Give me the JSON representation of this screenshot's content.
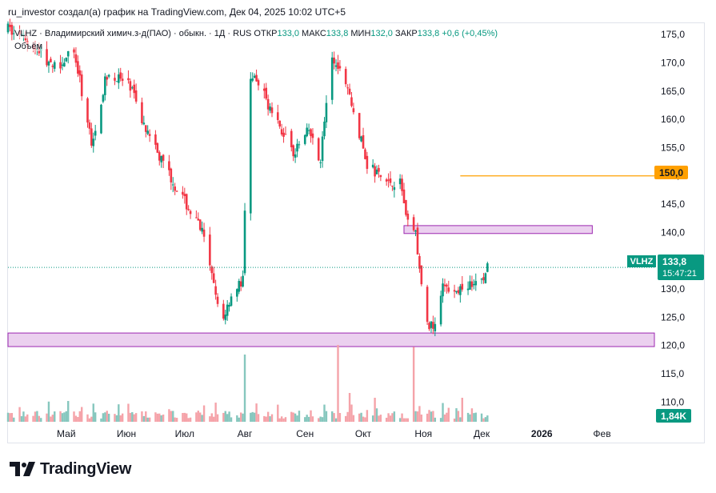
{
  "caption": "ru_investor создал(а) график на TradingView.com, Дек 04, 2025 10:02 UTC+5",
  "legend": {
    "symbol": "VLHZ · Владимирский химич.з-д(ПАО) · обыкн. · 1Д · RUS",
    "open_label": "ОТКР",
    "open": "133,0",
    "high_label": "МАКС",
    "high": "133,8",
    "low_label": "МИН",
    "low": "132,0",
    "close_label": "ЗАКР",
    "close": "133,8",
    "change": "+0,6 (+0,45%)",
    "volume_label": "Объём"
  },
  "price_tag": {
    "ticker": "VLHZ",
    "price": "133,8",
    "timer": "15:47:21"
  },
  "level_tag": "150,0",
  "volume_tag": "1,84K",
  "brand": "TradingView",
  "colors": {
    "up": "#089981",
    "down": "#f23645",
    "up_vol": "#86c7be",
    "down_vol": "#f5a3a9",
    "zone_fill": "#ebd0ef",
    "zone_border": "#9c27b0",
    "level": "#ffa000"
  },
  "chart_data": {
    "type": "candlestick",
    "ylim": [
      106.5,
      177.0
    ],
    "y_ticks": [
      "175,0",
      "170,0",
      "165,0",
      "160,0",
      "155,0",
      "150,0",
      "145,0",
      "140,0",
      "135,0",
      "130,0",
      "125,0",
      "120,0",
      "115,0",
      "110,0"
    ],
    "y_tick_values": [
      175,
      170,
      165,
      160,
      155,
      150,
      145,
      140,
      135,
      130,
      125,
      120,
      115,
      110
    ],
    "x_ticks": [
      "Май",
      "Июн",
      "Июл",
      "Авг",
      "Сен",
      "Окт",
      "Ноя",
      "Дек",
      "2026",
      "Фев"
    ],
    "x_tick_dates": [
      "2025-05-01",
      "2025-06-01",
      "2025-07-01",
      "2025-08-01",
      "2025-09-01",
      "2025-10-01",
      "2025-11-01",
      "2025-12-01",
      "2026-01-01",
      "2026-02-01"
    ],
    "x_range": [
      "2025-04-01",
      "2026-02-28"
    ],
    "last_price": 133.8,
    "horizontal_line": {
      "value": 150.0,
      "from": "2025-11-20"
    },
    "zones": [
      {
        "from": "2025-10-22",
        "to": "2026-01-27",
        "low": 139.8,
        "high": 141.2
      },
      {
        "from": "2025-04-01",
        "to": "2026-02-28",
        "low": 119.8,
        "high": 122.2
      }
    ],
    "path_points": [
      [
        "2025-04-01",
        176.0
      ],
      [
        "2025-04-18",
        172.0
      ],
      [
        "2025-04-24",
        169.0
      ],
      [
        "2025-05-05",
        172.0
      ],
      [
        "2025-05-14",
        156.0
      ],
      [
        "2025-05-22",
        168.0
      ],
      [
        "2025-06-03",
        166.0
      ],
      [
        "2025-06-12",
        157.0
      ],
      [
        "2025-06-20",
        152.0
      ],
      [
        "2025-06-30",
        146.0
      ],
      [
        "2025-07-10",
        140.0
      ],
      [
        "2025-07-15",
        132.0
      ],
      [
        "2025-07-20",
        124.0
      ],
      [
        "2025-07-25",
        129.0
      ],
      [
        "2025-07-31",
        131.5
      ],
      [
        "2025-08-03",
        168.0
      ],
      [
        "2025-08-10",
        165.0
      ],
      [
        "2025-08-18",
        159.0
      ],
      [
        "2025-08-27",
        154.0
      ],
      [
        "2025-09-03",
        158.0
      ],
      [
        "2025-09-09",
        153.0
      ],
      [
        "2025-09-14",
        170.0
      ],
      [
        "2025-09-20",
        170.0
      ],
      [
        "2025-09-27",
        160.0
      ],
      [
        "2025-10-03",
        152.0
      ],
      [
        "2025-10-12",
        149.0
      ],
      [
        "2025-10-20",
        149.0
      ],
      [
        "2025-10-24",
        142.0
      ],
      [
        "2025-10-28",
        140.0
      ],
      [
        "2025-10-31",
        130.0
      ],
      [
        "2025-11-03",
        124.0
      ],
      [
        "2025-11-07",
        123.0
      ],
      [
        "2025-11-11",
        130.0
      ],
      [
        "2025-11-16",
        130.5
      ],
      [
        "2025-11-22",
        130.0
      ],
      [
        "2025-11-28",
        131.0
      ],
      [
        "2025-12-01",
        131.0
      ],
      [
        "2025-12-04",
        133.8
      ]
    ],
    "volume_spikes": [
      [
        "2025-07-27",
        0.55
      ],
      [
        "2025-08-01",
        0.7
      ],
      [
        "2025-08-02",
        0.75
      ],
      [
        "2025-09-18",
        0.8
      ],
      [
        "2025-10-27",
        0.78
      ],
      [
        "2025-09-24",
        0.3
      ],
      [
        "2025-10-07",
        0.25
      ],
      [
        "2025-11-21",
        0.25
      ]
    ]
  }
}
